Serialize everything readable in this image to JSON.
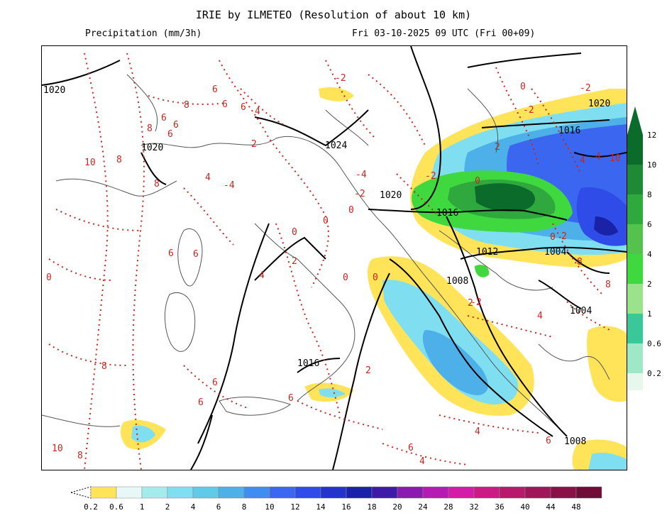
{
  "header": {
    "title": "IRIE by ILMETEO (Resolution of about 10 km)",
    "variable": "Precipitation (mm/3h)",
    "valid_time": "Fri 03-10-2025 09 UTC (Fri 00+09)"
  },
  "side_scale": {
    "labels": [
      "12",
      "10",
      "8",
      "6",
      "4",
      "2",
      "1",
      "0.6",
      "0.2"
    ],
    "colors": [
      "#0a6b2a",
      "#1e8a36",
      "#2fa83e",
      "#55c24d",
      "#3fd83f",
      "#9be38a",
      "#3ac79a",
      "#9ee8c8",
      "#e8f7ee"
    ]
  },
  "bottom_scale": {
    "labels": [
      "0.2",
      "0.6",
      "1",
      "2",
      "4",
      "6",
      "8",
      "10",
      "12",
      "14",
      "16",
      "18",
      "20",
      "24",
      "28",
      "32",
      "36",
      "40",
      "44",
      "48"
    ],
    "colors": [
      "#ffe45a",
      "#e8f8f8",
      "#a4ecec",
      "#7fdff0",
      "#5fcbe8",
      "#4db0e8",
      "#3f8df0",
      "#3a66f0",
      "#2f4ce8",
      "#2433cc",
      "#1a22a8",
      "#3e1aa8",
      "#8a1ab0",
      "#b51ab5",
      "#d41aa8",
      "#cc1a85",
      "#b81a6b",
      "#a0145a",
      "#8a1048",
      "#700c38"
    ]
  },
  "map_labels": {
    "isobars": [
      "1020",
      "1024",
      "1020",
      "1016",
      "1020",
      "1016",
      "1012",
      "1008",
      "1004",
      "1004",
      "1016",
      "1008",
      "1020"
    ],
    "temps": [
      "6",
      "6",
      "6",
      "4",
      "8",
      "6",
      "6",
      "8",
      "6",
      "8",
      "8",
      "-4",
      "4",
      "2",
      "6",
      "6",
      "0",
      "4",
      "0",
      "0",
      "2",
      "0",
      "-2",
      "-2",
      "-4",
      "-2",
      "0",
      "0",
      "2",
      "-2",
      "2",
      "0",
      "4",
      "0",
      "-2",
      "4",
      "10",
      "8",
      "8",
      "4",
      "2",
      "6",
      "4",
      "6",
      "6",
      "8",
      "10",
      "8",
      "6",
      "0",
      "-2",
      "10",
      "6",
      "4",
      "2"
    ]
  }
}
